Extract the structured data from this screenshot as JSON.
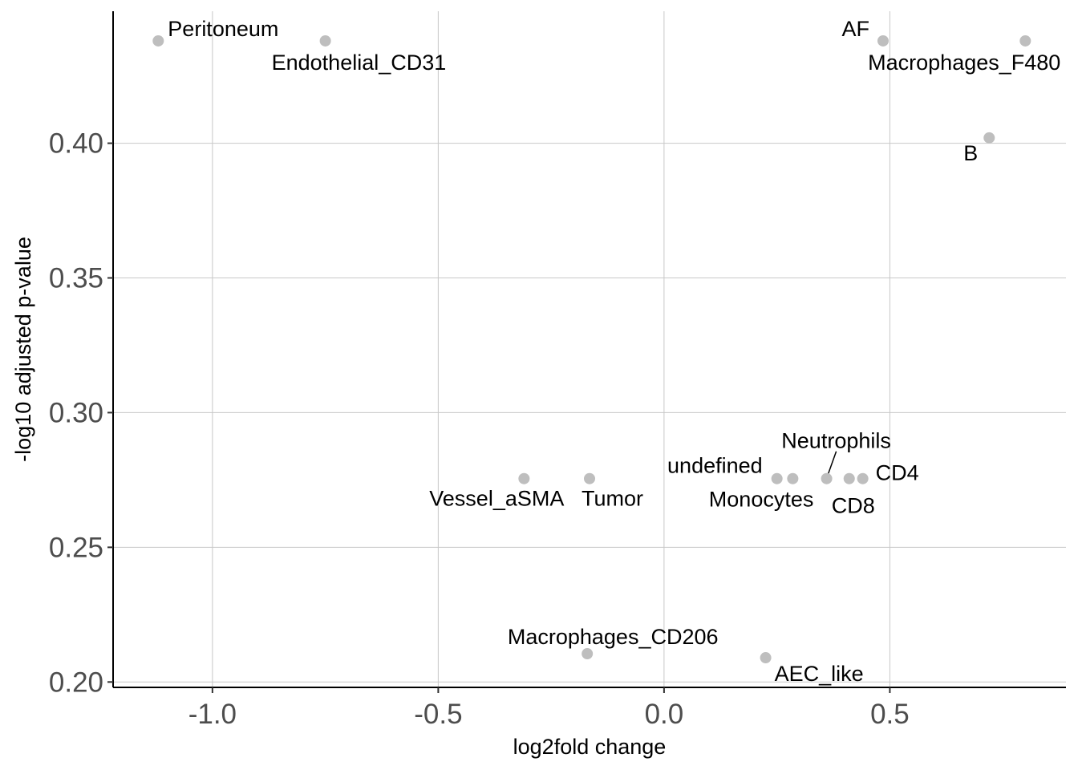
{
  "chart_data": {
    "type": "scatter",
    "xlabel": "log2fold change",
    "ylabel": "-log10 adjusted p-value",
    "xlim": [
      -1.22,
      0.89
    ],
    "ylim": [
      0.198,
      0.449
    ],
    "xticks": [
      -1.0,
      -0.5,
      0.0,
      0.5
    ],
    "xtick_labels": [
      "-1.0",
      "-0.5",
      "0.0",
      "0.5"
    ],
    "yticks": [
      0.2,
      0.25,
      0.3,
      0.35,
      0.4
    ],
    "ytick_labels": [
      "0.20",
      "0.25",
      "0.30",
      "0.35",
      "0.40"
    ],
    "grid": true,
    "point_color": "#bebebe",
    "points": [
      {
        "label": "Peritoneum",
        "x": -1.12,
        "y": 0.438,
        "label_anchor": "above-right"
      },
      {
        "label": "Endothelial_CD31",
        "x": -0.75,
        "y": 0.438,
        "label_anchor": "below-right"
      },
      {
        "label": "AF",
        "x": 0.485,
        "y": 0.438,
        "label_anchor": "above-left"
      },
      {
        "label": "Macrophages_F480",
        "x": 0.8,
        "y": 0.438,
        "label_anchor": "below-left"
      },
      {
        "label": "B",
        "x": 0.72,
        "y": 0.402,
        "label_anchor": "below-left"
      },
      {
        "label": "Vessel_aSMA",
        "x": -0.31,
        "y": 0.2755,
        "label_anchor": "below-left"
      },
      {
        "label": "Tumor",
        "x": -0.165,
        "y": 0.2755,
        "label_anchor": "below-right"
      },
      {
        "label": "undefined",
        "x": 0.25,
        "y": 0.2755,
        "label_anchor": "above-left"
      },
      {
        "label": "Monocytes",
        "x": 0.285,
        "y": 0.2755,
        "label_anchor": "below-left"
      },
      {
        "label": "Neutrophils",
        "x": 0.36,
        "y": 0.2755,
        "label_anchor": "above-leader"
      },
      {
        "label": "CD8",
        "x": 0.41,
        "y": 0.2755,
        "label_anchor": "below"
      },
      {
        "label": "CD4",
        "x": 0.44,
        "y": 0.2755,
        "label_anchor": "right"
      },
      {
        "label": "Macrophages_CD206",
        "x": -0.17,
        "y": 0.2105,
        "label_anchor": "above"
      },
      {
        "label": "AEC_like",
        "x": 0.225,
        "y": 0.209,
        "label_anchor": "below-right"
      }
    ]
  }
}
